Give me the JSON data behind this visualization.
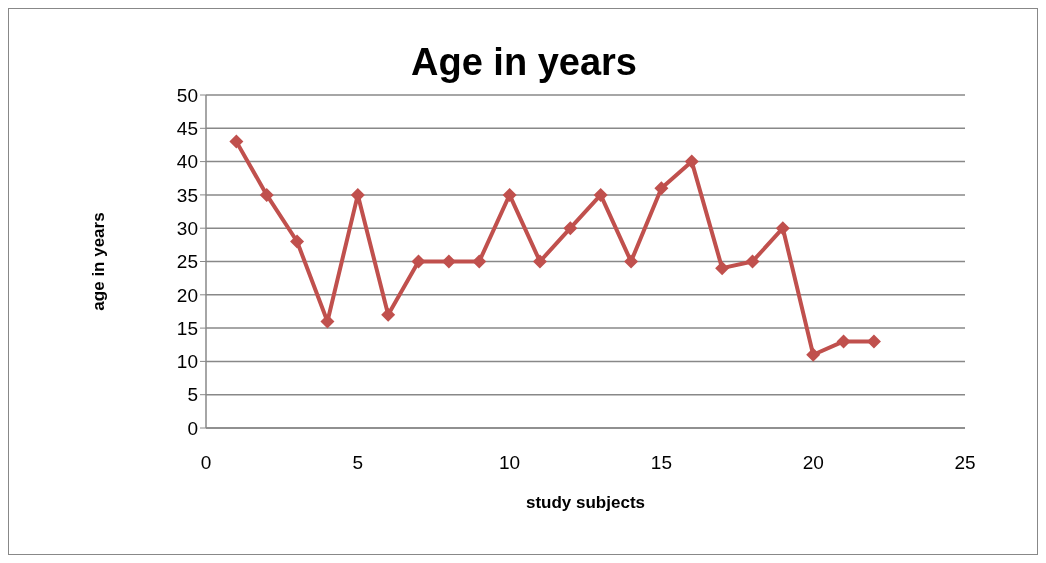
{
  "chart_data": {
    "type": "line",
    "title": "Age in years",
    "xlabel": "study subjects",
    "ylabel": "age in years",
    "x": [
      1,
      2,
      3,
      4,
      5,
      6,
      7,
      8,
      9,
      10,
      11,
      12,
      13,
      14,
      15,
      16,
      17,
      18,
      19,
      20,
      21,
      22
    ],
    "series": [
      {
        "color": "#c0504d",
        "values": [
          43,
          35,
          28,
          16,
          35,
          17,
          25,
          25,
          25,
          35,
          25,
          30,
          35,
          25,
          36,
          40,
          24,
          25,
          30,
          11,
          13,
          13
        ]
      }
    ],
    "xlim": [
      0,
      25
    ],
    "xticks": [
      0,
      5,
      10,
      15,
      20,
      25
    ],
    "ylim": [
      0,
      50
    ],
    "yticks": [
      0,
      5,
      10,
      15,
      20,
      25,
      30,
      35,
      40,
      45,
      50
    ],
    "grid": "y",
    "marker": "diamond"
  }
}
